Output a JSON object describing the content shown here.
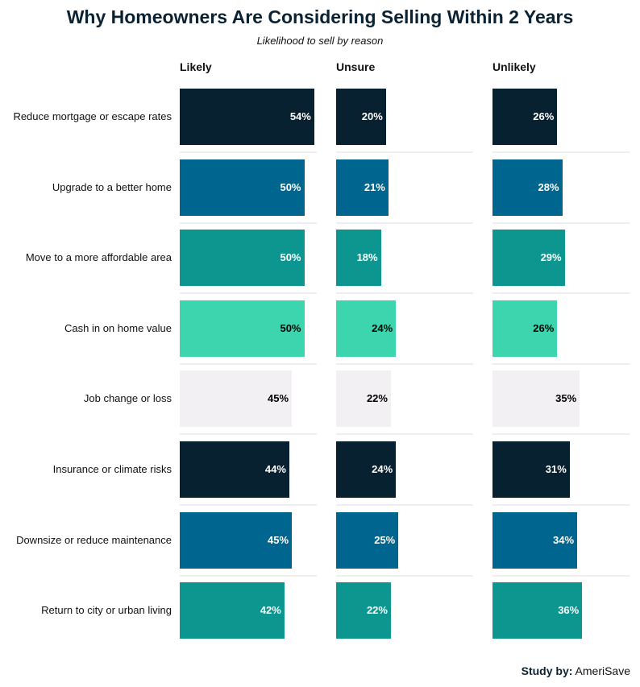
{
  "chart_data": {
    "type": "bar",
    "title": "Why Homeowners Are Considering Selling Within 2 Years",
    "subtitle": "Likelihood to sell by reason",
    "categories": [
      "Reduce mortgage or escape rates",
      "Upgrade to a better home",
      "Move to a more affordable area",
      "Cash in on home value",
      "Job change or loss",
      "Insurance or climate risks",
      "Downsize or reduce maintenance",
      "Return to city or urban living"
    ],
    "series": [
      {
        "name": "Likely",
        "values": [
          54,
          50,
          50,
          50,
          45,
          44,
          45,
          42
        ]
      },
      {
        "name": "Unsure",
        "values": [
          20,
          21,
          18,
          24,
          22,
          24,
          25,
          22
        ]
      },
      {
        "name": "Unlikely",
        "values": [
          26,
          28,
          29,
          26,
          35,
          31,
          34,
          36
        ]
      }
    ],
    "row_colors": [
      "#082131",
      "#006690",
      "#0c968f",
      "#3dd5ae",
      "#f2f0f3",
      "#082131",
      "#006690",
      "#0c968f"
    ],
    "row_text_colors": [
      "#ffffff",
      "#ffffff",
      "#ffffff",
      "#000000",
      "#000000",
      "#ffffff",
      "#ffffff",
      "#ffffff"
    ],
    "value_suffix": "%",
    "xlim": [
      0,
      55
    ],
    "grid": false
  },
  "footer": {
    "prefix": "Study by:",
    "source": "AmeriSave"
  }
}
